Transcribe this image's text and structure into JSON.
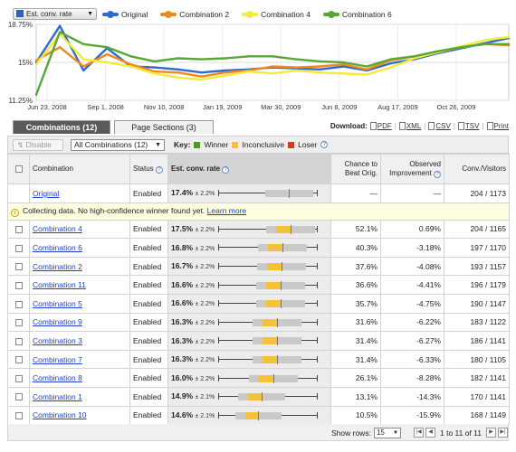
{
  "chart": {
    "metric_label": "Est. conv. rate",
    "legend": [
      {
        "name": "Original",
        "color": "#2d6bd2"
      },
      {
        "name": "Combination 2",
        "color": "#f08a1e"
      },
      {
        "name": "Combination 4",
        "color": "#f3ea3a"
      },
      {
        "name": "Combination 6",
        "color": "#58a834"
      }
    ]
  },
  "chart_data": {
    "type": "line",
    "x_ticks": [
      "Jun 23, 2008",
      "Sep 1, 2008",
      "Nov 10, 2008",
      "Jan 19, 2009",
      "Mar 30, 2009",
      "Jun 8, 2009",
      "Aug 17, 2009",
      "Oct 26, 2009"
    ],
    "y_ticks": [
      "18.75%",
      "15%",
      "11.25%"
    ],
    "ylim": [
      11.25,
      18.75
    ],
    "x": [
      "Jun 23, 2008",
      "Jul 8, 2008",
      "Jul 23, 2008",
      "Aug 7, 2008",
      "Aug 22, 2008",
      "Sep 6, 2008",
      "Oct 6, 2008",
      "Nov 5, 2008",
      "Dec 5, 2008",
      "Jan 4, 2009",
      "Feb 3, 2009",
      "Mar 5, 2009",
      "Apr 4, 2009",
      "May 4, 2009",
      "Jun 3, 2009",
      "Jul 3, 2009",
      "Aug 2, 2009",
      "Sep 1, 2009",
      "Oct 1, 2009",
      "Oct 31, 2009",
      "Nov 30, 2009"
    ],
    "series": [
      {
        "name": "Original",
        "color": "#2d6bd2",
        "values": [
          15.0,
          18.6,
          14.2,
          16.4,
          14.6,
          14.5,
          14.3,
          14.0,
          14.2,
          14.3,
          14.5,
          14.4,
          14.3,
          14.6,
          14.2,
          14.9,
          15.3,
          15.9,
          16.4,
          16.9,
          17.4
        ]
      },
      {
        "name": "Combination 2",
        "color": "#f08a1e",
        "values": [
          15.2,
          16.5,
          14.6,
          15.8,
          14.8,
          14.1,
          14.0,
          13.6,
          14.0,
          14.2,
          14.6,
          14.5,
          14.6,
          14.8,
          14.3,
          15.2,
          15.6,
          16.0,
          16.5,
          16.8,
          16.7
        ]
      },
      {
        "name": "Combination 4",
        "color": "#f3ea3a",
        "values": [
          14.8,
          17.8,
          15.3,
          15.0,
          14.6,
          13.9,
          13.5,
          13.3,
          13.7,
          14.1,
          13.9,
          14.2,
          14.0,
          13.9,
          13.8,
          14.5,
          15.4,
          16.0,
          16.6,
          17.2,
          17.5
        ]
      },
      {
        "name": "Combination 6",
        "color": "#58a834",
        "values": [
          11.8,
          18.0,
          16.8,
          16.5,
          15.6,
          15.1,
          15.4,
          15.3,
          15.4,
          15.6,
          15.6,
          15.3,
          15.1,
          15.0,
          14.6,
          15.3,
          15.6,
          16.1,
          16.5,
          16.8,
          16.8
        ]
      }
    ]
  },
  "tabs": {
    "combinations": "Combinations (12)",
    "page_sections": "Page Sections (3)"
  },
  "download": {
    "label": "Download:",
    "pdf": "PDF",
    "xml": "XML",
    "csv": "CSV",
    "tsv": "TSV",
    "print": "Print"
  },
  "toolbar": {
    "disable": "Disable",
    "filter": "All Combinations (12)",
    "key_label": "Key:",
    "winner": "Winner",
    "winner_color": "#4a9a2a",
    "inconclusive": "Inconclusive",
    "inconclusive_color": "#f3c13a",
    "loser": "Loser",
    "loser_color": "#d43b1f"
  },
  "headers": {
    "combination": "Combination",
    "status": "Status",
    "est": "Est. conv. rate",
    "chance": "Chance to Beat Orig.",
    "improvement": "Observed Improvement",
    "convs": "Conv./Visitors"
  },
  "original": {
    "name": "Original",
    "status": "Enabled",
    "rate": "17.4%",
    "ci": "± 2.2%",
    "chance": "—",
    "improvement": "—",
    "convs": "204 / 1173",
    "bar": {
      "lo": 15.2,
      "hi": 19.6,
      "winner_zone": false
    }
  },
  "notice": {
    "text": "Collecting data. No high-confidence winner found yet.",
    "link": "Learn more"
  },
  "rows": [
    {
      "name": "Combination 4",
      "status": "Enabled",
      "rate": "17.5%",
      "ci": "± 2.2%",
      "chance": "52.1%",
      "improvement": "0.69%",
      "convs": "204 / 1165",
      "bar": {
        "lo": 15.3,
        "hi": 19.7
      }
    },
    {
      "name": "Combination 6",
      "status": "Enabled",
      "rate": "16.8%",
      "ci": "± 2.2%",
      "chance": "40.3%",
      "improvement": "-3.18%",
      "convs": "197 / 1170",
      "bar": {
        "lo": 14.6,
        "hi": 19.0
      }
    },
    {
      "name": "Combination 2",
      "status": "Enabled",
      "rate": "16.7%",
      "ci": "± 2.2%",
      "chance": "37.6%",
      "improvement": "-4.08%",
      "convs": "193 / 1157",
      "bar": {
        "lo": 14.5,
        "hi": 18.9
      }
    },
    {
      "name": "Combination 11",
      "status": "Enabled",
      "rate": "16.6%",
      "ci": "± 2.2%",
      "chance": "36.6%",
      "improvement": "-4.41%",
      "convs": "196 / 1179",
      "bar": {
        "lo": 14.4,
        "hi": 18.8
      }
    },
    {
      "name": "Combination 5",
      "status": "Enabled",
      "rate": "16.6%",
      "ci": "± 2.2%",
      "chance": "35.7%",
      "improvement": "-4.75%",
      "convs": "190 / 1147",
      "bar": {
        "lo": 14.4,
        "hi": 18.8
      }
    },
    {
      "name": "Combination 9",
      "status": "Enabled",
      "rate": "16.3%",
      "ci": "± 2.2%",
      "chance": "31.6%",
      "improvement": "-6.22%",
      "convs": "183 / 1122",
      "bar": {
        "lo": 14.1,
        "hi": 18.5
      }
    },
    {
      "name": "Combination 3",
      "status": "Enabled",
      "rate": "16.3%",
      "ci": "± 2.2%",
      "chance": "31.4%",
      "improvement": "-6.27%",
      "convs": "186 / 1141",
      "bar": {
        "lo": 14.1,
        "hi": 18.5
      }
    },
    {
      "name": "Combination 7",
      "status": "Enabled",
      "rate": "16.3%",
      "ci": "± 2.2%",
      "chance": "31.4%",
      "improvement": "-6.33%",
      "convs": "180 / 1105",
      "bar": {
        "lo": 14.1,
        "hi": 18.5
      }
    },
    {
      "name": "Combination 8",
      "status": "Enabled",
      "rate": "16.0%",
      "ci": "± 2.2%",
      "chance": "26.1%",
      "improvement": "-8.28%",
      "convs": "182 / 1141",
      "bar": {
        "lo": 13.8,
        "hi": 18.2
      }
    },
    {
      "name": "Combination 1",
      "status": "Enabled",
      "rate": "14.9%",
      "ci": "± 2.1%",
      "chance": "13.1%",
      "improvement": "-14.3%",
      "convs": "170 / 1141",
      "bar": {
        "lo": 12.8,
        "hi": 17.0
      }
    },
    {
      "name": "Combination 10",
      "status": "Enabled",
      "rate": "14.6%",
      "ci": "± 2.1%",
      "chance": "10.5%",
      "improvement": "-15.9%",
      "convs": "168 / 1149",
      "bar": {
        "lo": 12.5,
        "hi": 16.7
      }
    }
  ],
  "bar_scale": {
    "min": 11.0,
    "max": 20.0
  },
  "footer": {
    "show_rows_label": "Show rows:",
    "rows_value": "15",
    "page_text": "1 to 11 of 11"
  }
}
